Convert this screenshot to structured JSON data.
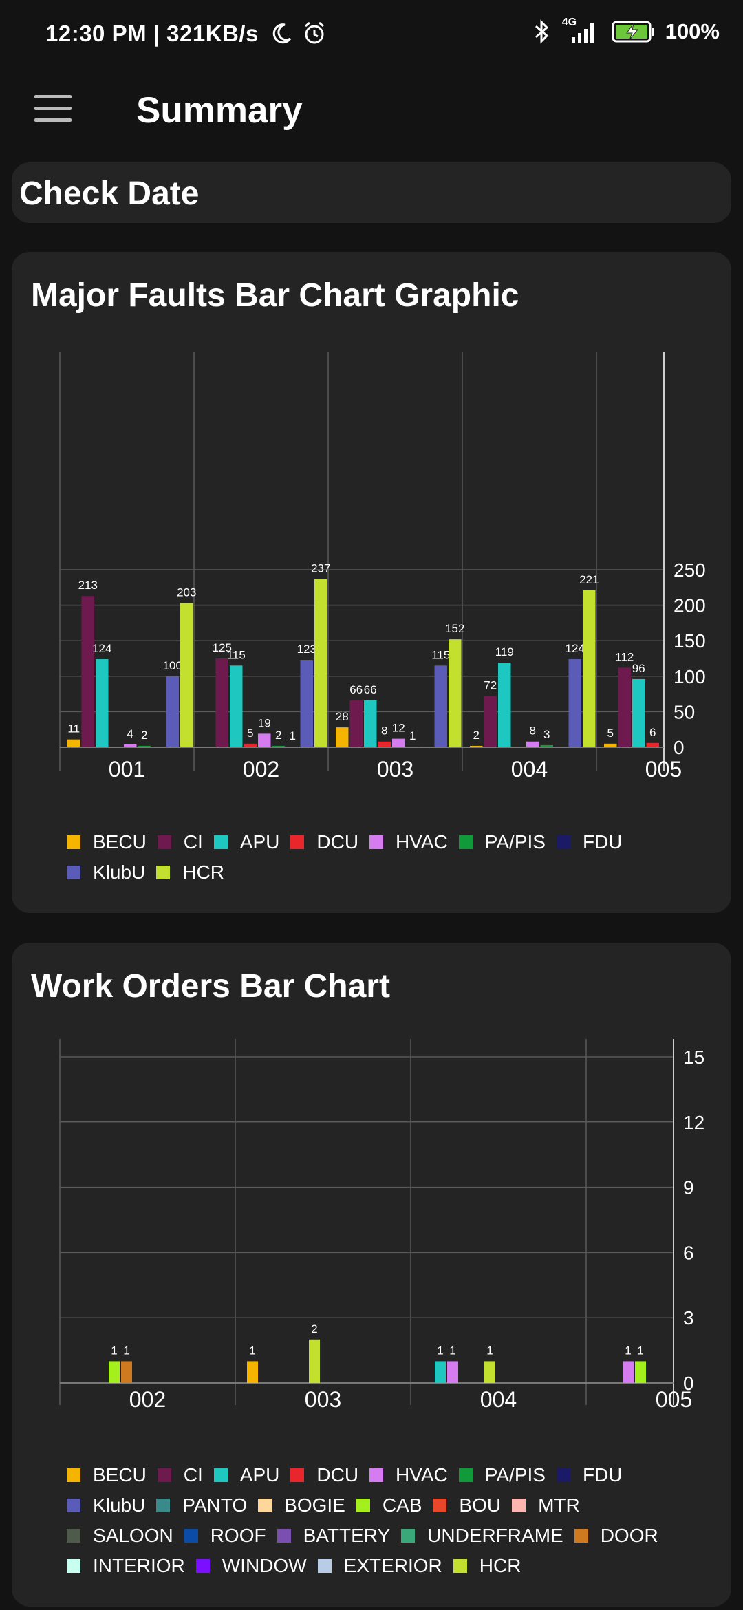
{
  "status_bar": {
    "time": "12:30 PM",
    "speed": "321KB/s",
    "network": "4G",
    "battery": "100%"
  },
  "header": {
    "title": "Summary"
  },
  "check_date": {
    "label": "Check Date"
  },
  "colors": {
    "BECU": "#f5b400",
    "CI": "#6e1a4e",
    "APU": "#1ec8c0",
    "DCU": "#e8262b",
    "HVAC": "#d47cf0",
    "PA/PIS": "#119a3a",
    "FDU": "#1a1a66",
    "KlubU": "#5b5cb8",
    "HCR": "#c3e02e",
    "PANTO": "#3a8a8a",
    "BOGIE": "#ffd79a",
    "CAB": "#a4f01c",
    "BOU": "#e8472a",
    "MTR": "#ffb6b0",
    "SALOON": "#4e5a4a",
    "ROOF": "#0a4ca8",
    "BATTERY": "#7a4fb0",
    "UNDERFRAME": "#3aa878",
    "DOOR": "#d07a20",
    "INTERIOR": "#c8fff0",
    "WINDOW": "#7a10ff",
    "EXTERIOR": "#b8cce8"
  },
  "chart_data": [
    {
      "title": "Major Faults Bar Chart Graphic",
      "type": "bar",
      "categories": [
        "001",
        "002",
        "003",
        "004",
        "005"
      ],
      "ylim": [
        0,
        250
      ],
      "yticks": [
        0,
        50,
        100,
        150,
        200,
        250
      ],
      "series": [
        {
          "name": "BECU",
          "values": [
            11,
            0,
            28,
            2,
            5
          ]
        },
        {
          "name": "CI",
          "values": [
            213,
            125,
            66,
            72,
            112
          ]
        },
        {
          "name": "APU",
          "values": [
            124,
            115,
            66,
            119,
            96
          ]
        },
        {
          "name": "DCU",
          "values": [
            0,
            5,
            8,
            0,
            6
          ]
        },
        {
          "name": "HVAC",
          "values": [
            4,
            19,
            12,
            8,
            7
          ]
        },
        {
          "name": "PA/PIS",
          "values": [
            2,
            2,
            1,
            3,
            null
          ]
        },
        {
          "name": "FDU",
          "values": [
            0,
            1,
            0,
            0,
            null
          ]
        },
        {
          "name": "KlubU",
          "values": [
            100,
            123,
            115,
            124,
            null
          ]
        },
        {
          "name": "HCR",
          "values": [
            203,
            237,
            152,
            221,
            null
          ]
        }
      ],
      "legend": [
        "BECU",
        "CI",
        "APU",
        "DCU",
        "HVAC",
        "PA/PIS",
        "FDU",
        "KlubU",
        "HCR"
      ]
    },
    {
      "title": "Work Orders Bar Chart",
      "type": "bar",
      "categories": [
        "002",
        "003",
        "004",
        "005"
      ],
      "ylim": [
        0,
        15
      ],
      "yticks": [
        0,
        3,
        6,
        9,
        12,
        15
      ],
      "series": [
        {
          "name": "BECU",
          "values": [
            0,
            1,
            0,
            0
          ]
        },
        {
          "name": "APU",
          "values": [
            0,
            0,
            1,
            0
          ]
        },
        {
          "name": "HVAC",
          "values": [
            0,
            0,
            1,
            1
          ]
        },
        {
          "name": "CAB",
          "values": [
            1,
            0,
            0,
            1
          ]
        },
        {
          "name": "DOOR",
          "values": [
            1,
            0,
            0,
            0
          ]
        },
        {
          "name": "HCR",
          "values": [
            0,
            2,
            1,
            0
          ]
        }
      ],
      "legend": [
        "BECU",
        "CI",
        "APU",
        "DCU",
        "HVAC",
        "PA/PIS",
        "FDU",
        "KlubU",
        "PANTO",
        "BOGIE",
        "CAB",
        "BOU",
        "MTR",
        "SALOON",
        "ROOF",
        "BATTERY",
        "UNDERFRAME",
        "DOOR",
        "INTERIOR",
        "WINDOW",
        "EXTERIOR",
        "HCR"
      ]
    }
  ]
}
